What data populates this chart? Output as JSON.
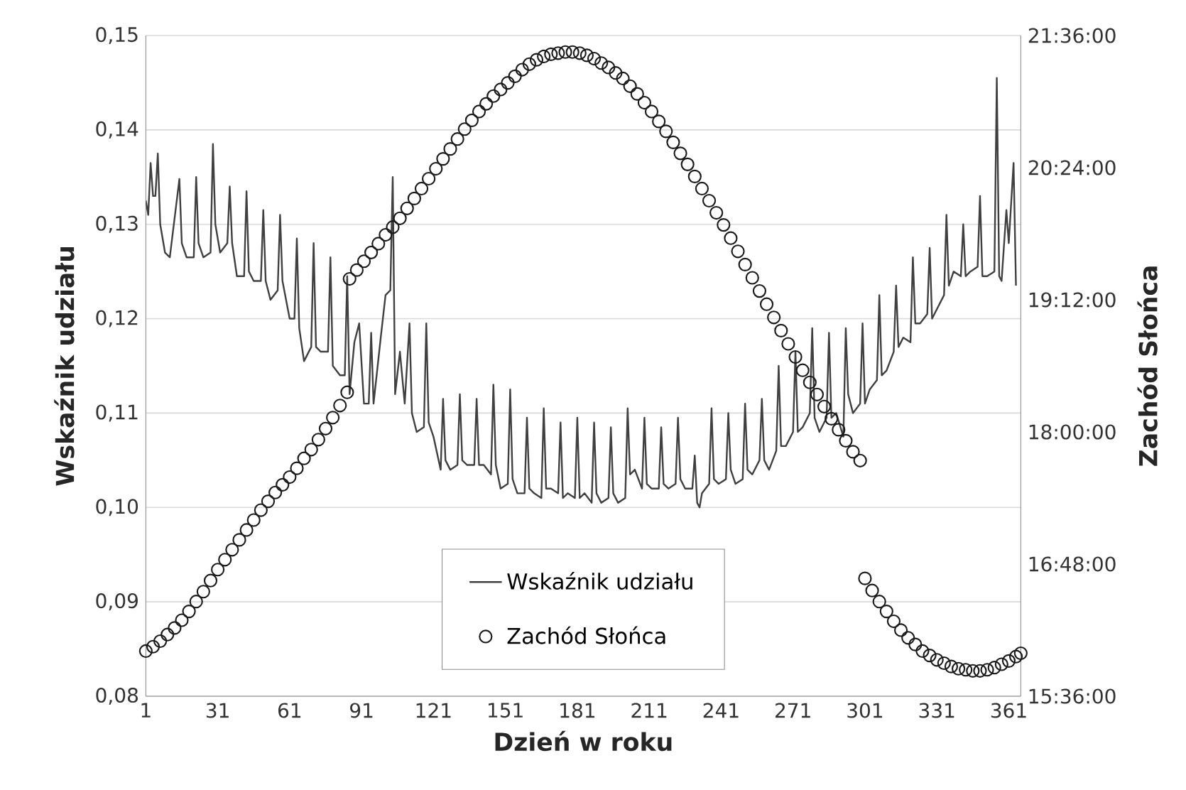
{
  "chart_data": {
    "type": "line",
    "xlabel": "Dzień w roku",
    "ylabel": "Wskaźnik  udziału",
    "y2label": "Zachód  Słońca",
    "xlim": [
      1,
      366
    ],
    "xticks": [
      1,
      31,
      61,
      91,
      121,
      151,
      181,
      211,
      241,
      271,
      301,
      331,
      361
    ],
    "ylim": [
      0.08,
      0.15
    ],
    "yticks": [
      {
        "value": 0.08,
        "label": "0,08"
      },
      {
        "value": 0.09,
        "label": "0,09"
      },
      {
        "value": 0.1,
        "label": "0,10"
      },
      {
        "value": 0.11,
        "label": "0,11"
      },
      {
        "value": 0.12,
        "label": "0,12"
      },
      {
        "value": 0.13,
        "label": "0,13"
      },
      {
        "value": 0.14,
        "label": "0,14"
      },
      {
        "value": 0.15,
        "label": "0,15"
      }
    ],
    "y2lim": [
      15.6,
      21.6
    ],
    "y2ticks": [
      {
        "value": 15.6,
        "label": "15:36:00"
      },
      {
        "value": 16.8,
        "label": "16:48:00"
      },
      {
        "value": 18,
        "label": "18:00:00"
      },
      {
        "value": 19.2,
        "label": "19:12:00"
      },
      {
        "value": 20.4,
        "label": "20:24:00"
      },
      {
        "value": 21.6,
        "label": "21:36:00"
      }
    ],
    "grid": "y",
    "legend": "bottom",
    "series": [
      {
        "name": "Wskaźnik udziału",
        "color": "#404040",
        "marker": "none",
        "line_style": "solid",
        "x": [
          1,
          2,
          3,
          4,
          5,
          6,
          7,
          9,
          11,
          15,
          16,
          18,
          21,
          22,
          23,
          25,
          28,
          29,
          30,
          32,
          35,
          36,
          37,
          39,
          42,
          43,
          44,
          46,
          49,
          50,
          51,
          53,
          56,
          57,
          58,
          61,
          63,
          64,
          65,
          67,
          70,
          71,
          72,
          74,
          77,
          78,
          79,
          82,
          84,
          85,
          86,
          88,
          90,
          92,
          94,
          95,
          96,
          99,
          101,
          103,
          104,
          105,
          107,
          109,
          111,
          112,
          114,
          117,
          118,
          119,
          121,
          124,
          125,
          126,
          128,
          131,
          132,
          133,
          135,
          138,
          139,
          140,
          142,
          145,
          146,
          147,
          149,
          152,
          153,
          154,
          156,
          159,
          160,
          161,
          163,
          166,
          167,
          168,
          170,
          173,
          174,
          175,
          177,
          180,
          181,
          182,
          184,
          187,
          188,
          189,
          191,
          194,
          195,
          196,
          198,
          201,
          202,
          203,
          205,
          208,
          209,
          210,
          212,
          215,
          216,
          217,
          219,
          222,
          223,
          224,
          226,
          229,
          230,
          231,
          232,
          233,
          236,
          237,
          238,
          240,
          243,
          244,
          245,
          247,
          250,
          251,
          252,
          254,
          257,
          258,
          259,
          261,
          264,
          265,
          266,
          268,
          271,
          272,
          273,
          275,
          278,
          279,
          280,
          282,
          285,
          286,
          287,
          289,
          292,
          293,
          294,
          296,
          299,
          300,
          301,
          303,
          306,
          307,
          308,
          310,
          313,
          314,
          315,
          317,
          320,
          321,
          322,
          324,
          327,
          328,
          329,
          331,
          334,
          335,
          336,
          338,
          341,
          342,
          343,
          345,
          348,
          349,
          350,
          352,
          355,
          356,
          357,
          358,
          360,
          361,
          363,
          364
        ],
        "values": [
          0.1325,
          0.131,
          0.1365,
          0.133,
          0.133,
          0.1375,
          0.13,
          0.127,
          0.1265,
          0.1348,
          0.128,
          0.1265,
          0.1265,
          0.135,
          0.128,
          0.1265,
          0.127,
          0.1385,
          0.13,
          0.127,
          0.128,
          0.134,
          0.128,
          0.1245,
          0.1245,
          0.1335,
          0.125,
          0.124,
          0.124,
          0.1315,
          0.124,
          0.122,
          0.123,
          0.131,
          0.124,
          0.12,
          0.12,
          0.1285,
          0.119,
          0.1155,
          0.117,
          0.128,
          0.117,
          0.1165,
          0.1165,
          0.1265,
          0.115,
          0.114,
          0.114,
          0.1245,
          0.112,
          0.1175,
          0.1195,
          0.111,
          0.111,
          0.1185,
          0.111,
          0.118,
          0.1225,
          0.123,
          0.135,
          0.112,
          0.1165,
          0.111,
          0.1195,
          0.11,
          0.108,
          0.1085,
          0.1195,
          0.109,
          0.1075,
          0.104,
          0.1115,
          0.105,
          0.104,
          0.1045,
          0.112,
          0.105,
          0.1045,
          0.1045,
          0.1115,
          0.1045,
          0.1045,
          0.1035,
          0.113,
          0.1045,
          0.102,
          0.1025,
          0.1125,
          0.103,
          0.1015,
          0.1015,
          0.1095,
          0.102,
          0.1015,
          0.101,
          0.1105,
          0.102,
          0.102,
          0.1015,
          0.109,
          0.101,
          0.1015,
          0.101,
          0.1095,
          0.101,
          0.1015,
          0.1005,
          0.109,
          0.1015,
          0.1005,
          0.101,
          0.1085,
          0.1015,
          0.1005,
          0.101,
          0.1105,
          0.1035,
          0.104,
          0.102,
          0.1095,
          0.1025,
          0.102,
          0.102,
          0.1085,
          0.1025,
          0.102,
          0.1025,
          0.1095,
          0.103,
          0.102,
          0.102,
          0.1055,
          0.1005,
          0.1,
          0.1015,
          0.1025,
          0.1105,
          0.103,
          0.1025,
          0.103,
          0.11,
          0.104,
          0.1025,
          0.103,
          0.111,
          0.104,
          0.1035,
          0.105,
          0.1115,
          0.105,
          0.104,
          0.106,
          0.115,
          0.1065,
          0.1065,
          0.108,
          0.1165,
          0.108,
          0.1085,
          0.11,
          0.119,
          0.1095,
          0.108,
          0.1095,
          0.1185,
          0.1095,
          0.11,
          0.1075,
          0.119,
          0.112,
          0.11,
          0.111,
          0.1195,
          0.111,
          0.1125,
          0.1135,
          0.1225,
          0.114,
          0.1145,
          0.1165,
          0.1235,
          0.117,
          0.118,
          0.1175,
          0.1265,
          0.1195,
          0.1195,
          0.1205,
          0.1275,
          0.12,
          0.121,
          0.1225,
          0.131,
          0.1235,
          0.125,
          0.1245,
          0.13,
          0.1245,
          0.125,
          0.1255,
          0.133,
          0.1245,
          0.1245,
          0.125,
          0.1455,
          0.1245,
          0.124,
          0.1315,
          0.128,
          0.1365,
          0.1235
        ]
      },
      {
        "name": "Zachód Słońca",
        "type": "scatter",
        "axis": "y2",
        "color": "#1a1a1a",
        "marker": "circle",
        "x": [
          1,
          4,
          7,
          10,
          13,
          16,
          19,
          22,
          25,
          28,
          31,
          34,
          37,
          40,
          43,
          46,
          49,
          52,
          55,
          58,
          61,
          64,
          67,
          70,
          73,
          76,
          79,
          82,
          85,
          86,
          89,
          92,
          95,
          98,
          101,
          104,
          107,
          110,
          113,
          116,
          119,
          122,
          125,
          128,
          131,
          134,
          137,
          140,
          143,
          146,
          149,
          152,
          155,
          158,
          161,
          164,
          167,
          170,
          173,
          176,
          179,
          182,
          185,
          188,
          191,
          194,
          197,
          200,
          203,
          206,
          209,
          212,
          215,
          218,
          221,
          224,
          227,
          230,
          233,
          236,
          239,
          242,
          245,
          248,
          251,
          254,
          257,
          260,
          263,
          266,
          269,
          272,
          275,
          278,
          281,
          284,
          287,
          290,
          293,
          296,
          299,
          301,
          304,
          307,
          310,
          313,
          316,
          319,
          322,
          325,
          328,
          331,
          334,
          337,
          340,
          343,
          346,
          349,
          352,
          355,
          358,
          361,
          364,
          366
        ],
        "values": [
          16.01,
          16.05,
          16.1,
          16.16,
          16.22,
          16.29,
          16.37,
          16.46,
          16.55,
          16.65,
          16.75,
          16.84,
          16.93,
          17.02,
          17.11,
          17.2,
          17.29,
          17.37,
          17.45,
          17.52,
          17.59,
          17.67,
          17.76,
          17.84,
          17.93,
          18.03,
          18.13,
          18.24,
          18.36,
          19.39,
          19.47,
          19.55,
          19.63,
          19.71,
          19.79,
          19.86,
          19.94,
          20.03,
          20.12,
          20.21,
          20.3,
          20.39,
          20.48,
          20.57,
          20.66,
          20.75,
          20.83,
          20.91,
          20.98,
          21.05,
          21.11,
          21.17,
          21.23,
          21.29,
          21.34,
          21.38,
          21.41,
          21.43,
          21.44,
          21.45,
          21.45,
          21.44,
          21.42,
          21.39,
          21.35,
          21.31,
          21.26,
          21.21,
          21.14,
          21.07,
          20.99,
          20.91,
          20.82,
          20.73,
          20.63,
          20.53,
          20.43,
          20.32,
          20.21,
          20.1,
          19.99,
          19.88,
          19.76,
          19.64,
          19.52,
          19.4,
          19.28,
          19.16,
          19.04,
          18.92,
          18.8,
          18.68,
          18.56,
          18.45,
          18.34,
          18.23,
          18.12,
          18.02,
          17.92,
          17.82,
          17.74,
          16.67,
          16.56,
          16.46,
          16.37,
          16.28,
          16.2,
          16.13,
          16.07,
          16.01,
          15.97,
          15.93,
          15.9,
          15.87,
          15.85,
          15.84,
          15.83,
          15.83,
          15.84,
          15.86,
          15.89,
          15.92,
          15.96,
          15.99
        ]
      }
    ]
  }
}
